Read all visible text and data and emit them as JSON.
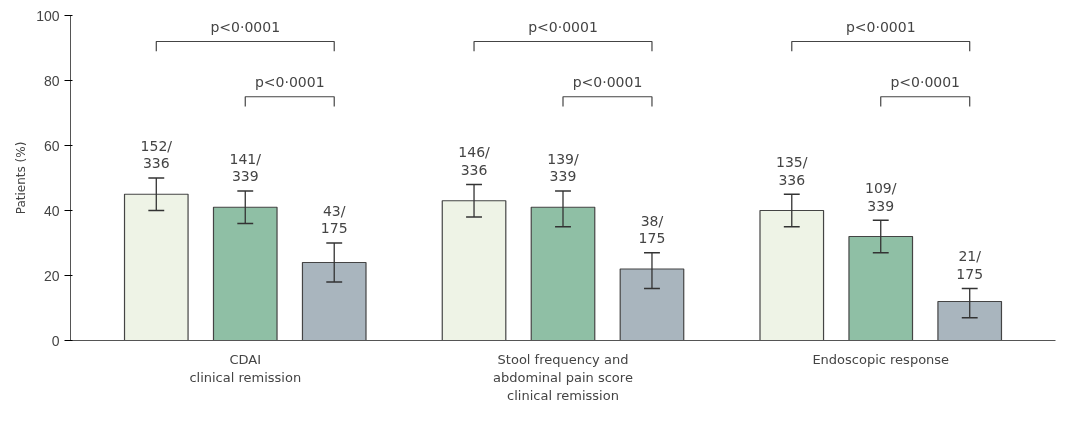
{
  "chart_data": {
    "type": "bar",
    "ylabel": "Patients (%)",
    "categories": [
      "CDAI\nclinical remission",
      "Stool frequency and\nabdominal pain score\nclinical remission",
      "Endoscopic response"
    ],
    "series": [
      {
        "color": "#eef3e6",
        "values": [
          45,
          43,
          40
        ],
        "errors": [
          [
            40,
            50
          ],
          [
            38,
            48
          ],
          [
            35,
            45
          ]
        ],
        "value_labels": [
          "152/\n336",
          "146/\n336",
          "135/\n336"
        ]
      },
      {
        "color": "#8fbfa5",
        "values": [
          41,
          41,
          32
        ],
        "errors": [
          [
            36,
            46
          ],
          [
            35,
            46
          ],
          [
            27,
            37
          ]
        ],
        "value_labels": [
          "141/\n339",
          "139/\n339",
          "109/\n339"
        ]
      },
      {
        "color": "#a9b5be",
        "values": [
          24,
          22,
          12
        ],
        "errors": [
          [
            18,
            30
          ],
          [
            16,
            27
          ],
          [
            7,
            16
          ]
        ],
        "value_labels": [
          "43/\n175",
          "38/\n175",
          "21/\n175"
        ]
      }
    ],
    "annotations": [
      "p<0·0001",
      "p<0·0001",
      "p<0·0001",
      "p<0·0001",
      "p<0·0001",
      "p<0·0001"
    ],
    "ylim": [
      0,
      100
    ],
    "yticks": [
      0,
      20,
      40,
      60,
      80,
      100
    ],
    "grid": false
  }
}
